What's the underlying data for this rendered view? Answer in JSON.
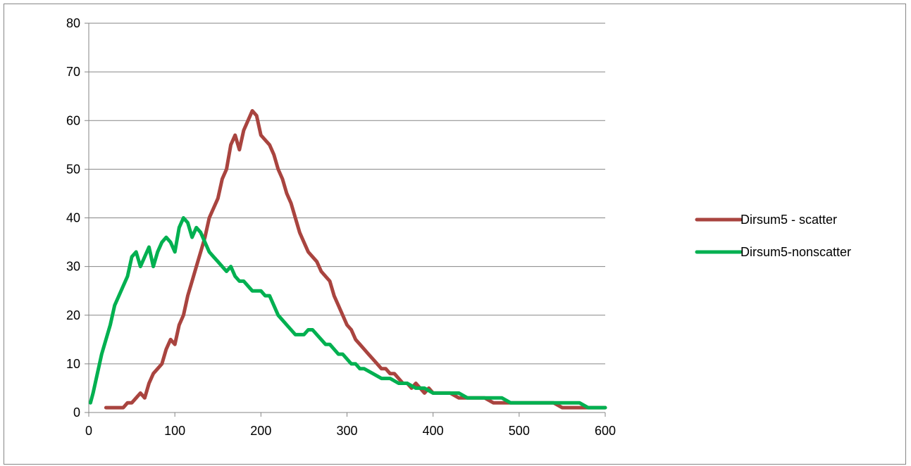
{
  "chart_data": {
    "type": "line",
    "title": "",
    "xlabel": "",
    "ylabel": "",
    "xlim": [
      0,
      600
    ],
    "ylim": [
      0,
      80
    ],
    "x_ticks": [
      0,
      100,
      200,
      300,
      400,
      500,
      600
    ],
    "y_ticks": [
      0,
      10,
      20,
      30,
      40,
      50,
      60,
      70,
      80
    ],
    "grid": "horizontal",
    "legend_position": "right",
    "series": [
      {
        "name": "Dirsum5 - scatter",
        "color": "#A9443F",
        "x": [
          20,
          30,
          40,
          45,
          50,
          55,
          60,
          65,
          70,
          75,
          80,
          85,
          90,
          95,
          100,
          105,
          110,
          115,
          120,
          125,
          130,
          135,
          140,
          145,
          150,
          155,
          160,
          165,
          170,
          175,
          180,
          185,
          190,
          195,
          200,
          205,
          210,
          215,
          220,
          225,
          230,
          235,
          240,
          245,
          250,
          255,
          260,
          265,
          270,
          275,
          280,
          285,
          290,
          295,
          300,
          305,
          310,
          315,
          320,
          325,
          330,
          335,
          340,
          345,
          350,
          355,
          360,
          365,
          370,
          375,
          380,
          385,
          390,
          395,
          400,
          410,
          420,
          430,
          440,
          450,
          460,
          470,
          480,
          490,
          500,
          510,
          520,
          530,
          540,
          550,
          560,
          570,
          580,
          590,
          600
        ],
        "y": [
          1,
          1,
          1,
          2,
          2,
          3,
          4,
          3,
          6,
          8,
          9,
          10,
          13,
          15,
          14,
          18,
          20,
          24,
          27,
          30,
          33,
          36,
          40,
          42,
          44,
          48,
          50,
          55,
          57,
          54,
          58,
          60,
          62,
          61,
          57,
          56,
          55,
          53,
          50,
          48,
          45,
          43,
          40,
          37,
          35,
          33,
          32,
          31,
          29,
          28,
          27,
          24,
          22,
          20,
          18,
          17,
          15,
          14,
          13,
          12,
          11,
          10,
          9,
          9,
          8,
          8,
          7,
          6,
          6,
          5,
          6,
          5,
          4,
          5,
          4,
          4,
          4,
          3,
          3,
          3,
          3,
          2,
          2,
          2,
          2,
          2,
          2,
          2,
          2,
          1,
          1,
          1,
          1,
          1,
          1
        ]
      },
      {
        "name": "Dirsum5-nonscatter",
        "color": "#00B050",
        "x": [
          2,
          5,
          10,
          15,
          20,
          25,
          30,
          35,
          40,
          45,
          50,
          55,
          60,
          65,
          70,
          75,
          80,
          85,
          90,
          95,
          100,
          105,
          110,
          115,
          120,
          125,
          130,
          135,
          140,
          145,
          150,
          155,
          160,
          165,
          170,
          175,
          180,
          185,
          190,
          195,
          200,
          205,
          210,
          215,
          220,
          225,
          230,
          235,
          240,
          245,
          250,
          255,
          260,
          265,
          270,
          275,
          280,
          285,
          290,
          295,
          300,
          305,
          310,
          315,
          320,
          330,
          340,
          350,
          360,
          370,
          380,
          390,
          400,
          410,
          420,
          430,
          440,
          450,
          460,
          470,
          480,
          490,
          500,
          510,
          520,
          530,
          540,
          550,
          560,
          570,
          580,
          590,
          600
        ],
        "y": [
          2,
          4,
          8,
          12,
          15,
          18,
          22,
          24,
          26,
          28,
          32,
          33,
          30,
          32,
          34,
          30,
          33,
          35,
          36,
          35,
          33,
          38,
          40,
          39,
          36,
          38,
          37,
          35,
          33,
          32,
          31,
          30,
          29,
          30,
          28,
          27,
          27,
          26,
          25,
          25,
          25,
          24,
          24,
          22,
          20,
          19,
          18,
          17,
          16,
          16,
          16,
          17,
          17,
          16,
          15,
          14,
          14,
          13,
          12,
          12,
          11,
          10,
          10,
          9,
          9,
          8,
          7,
          7,
          6,
          6,
          5,
          5,
          4,
          4,
          4,
          4,
          3,
          3,
          3,
          3,
          3,
          2,
          2,
          2,
          2,
          2,
          2,
          2,
          2,
          2,
          1,
          1,
          1
        ]
      }
    ]
  }
}
